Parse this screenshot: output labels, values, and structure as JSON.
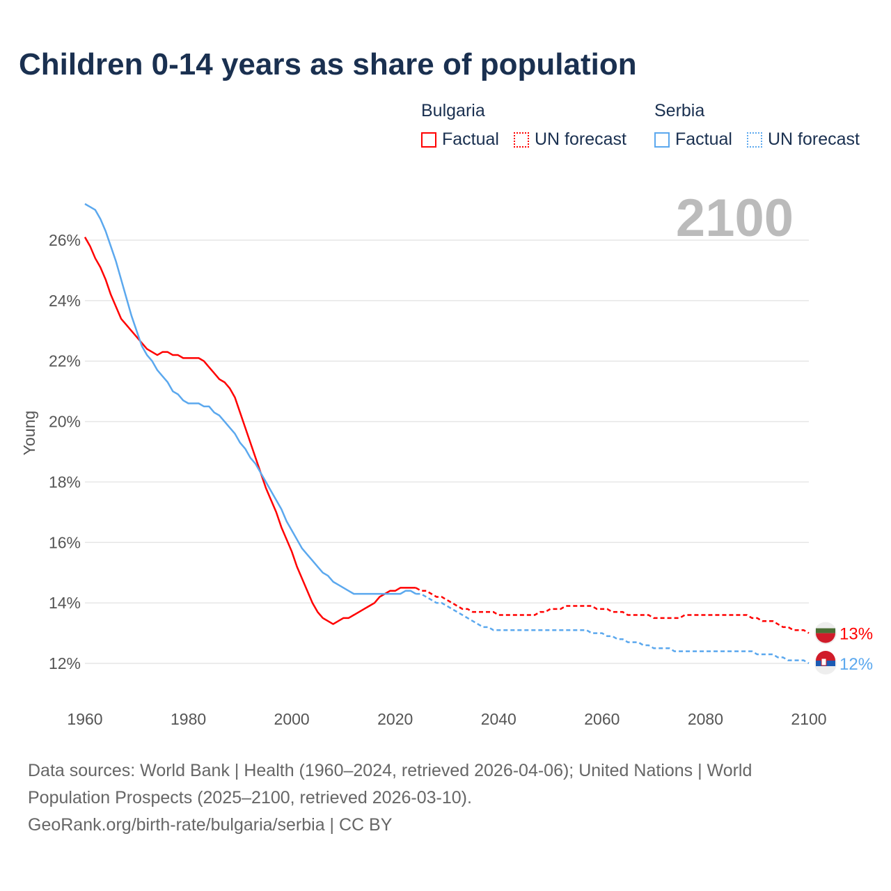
{
  "title": "Children 0-14 years as share of population",
  "legend": {
    "groups": [
      {
        "name": "Bulgaria",
        "color": "#ff0000",
        "factual": "Factual",
        "forecast": "UN forecast"
      },
      {
        "name": "Serbia",
        "color": "#5ba8ee",
        "factual": "Factual",
        "forecast": "UN forecast"
      }
    ]
  },
  "current_year": "2100",
  "footer": {
    "line1": "Data sources: World Bank | Health (1960–2024, retrieved 2026-04-06); United Nations | World Population Prospects (2025–2100, retrieved 2026-03-10).",
    "line2": "GeoRank.org/birth-rate/bulgaria/serbia | CC BY"
  },
  "chart_data": {
    "type": "line",
    "title": "Children 0-14 years as share of population",
    "xlabel": "",
    "ylabel": "Young",
    "xlim": [
      1960,
      2100
    ],
    "ylim": [
      11,
      27.2
    ],
    "xticks": [
      "1960",
      "1980",
      "2000",
      "2020",
      "2040",
      "2060",
      "2080",
      "2100"
    ],
    "yticks": [
      "12%",
      "14%",
      "16%",
      "18%",
      "20%",
      "22%",
      "24%",
      "26%"
    ],
    "grid": true,
    "series": [
      {
        "name": "Bulgaria",
        "color": "#ff0000",
        "end_label": "13%",
        "factual_start": 1960,
        "factual": [
          26.1,
          25.8,
          25.4,
          25.1,
          24.7,
          24.2,
          23.8,
          23.4,
          23.2,
          23.0,
          22.8,
          22.6,
          22.4,
          22.3,
          22.2,
          22.3,
          22.3,
          22.2,
          22.2,
          22.1,
          22.1,
          22.1,
          22.1,
          22.0,
          21.8,
          21.6,
          21.4,
          21.3,
          21.1,
          20.8,
          20.3,
          19.8,
          19.3,
          18.8,
          18.3,
          17.8,
          17.4,
          17.0,
          16.5,
          16.1,
          15.7,
          15.2,
          14.8,
          14.4,
          14.0,
          13.7,
          13.5,
          13.4,
          13.3,
          13.4,
          13.5,
          13.5,
          13.6,
          13.7,
          13.8,
          13.9,
          14.0,
          14.2,
          14.3,
          14.4,
          14.4,
          14.5,
          14.5,
          14.5,
          14.5
        ],
        "forecast_start": 2024,
        "forecast": [
          14.5,
          14.4,
          14.4,
          14.3,
          14.2,
          14.2,
          14.1,
          14.0,
          13.9,
          13.8,
          13.8,
          13.7,
          13.7,
          13.7,
          13.7,
          13.7,
          13.6,
          13.6,
          13.6,
          13.6,
          13.6,
          13.6,
          13.6,
          13.6,
          13.7,
          13.7,
          13.8,
          13.8,
          13.8,
          13.9,
          13.9,
          13.9,
          13.9,
          13.9,
          13.9,
          13.8,
          13.8,
          13.8,
          13.7,
          13.7,
          13.7,
          13.6,
          13.6,
          13.6,
          13.6,
          13.6,
          13.5,
          13.5,
          13.5,
          13.5,
          13.5,
          13.5,
          13.6,
          13.6,
          13.6,
          13.6,
          13.6,
          13.6,
          13.6,
          13.6,
          13.6,
          13.6,
          13.6,
          13.6,
          13.6,
          13.5,
          13.5,
          13.4,
          13.4,
          13.4,
          13.3,
          13.2,
          13.2,
          13.1,
          13.1,
          13.1,
          13.0
        ]
      },
      {
        "name": "Serbia",
        "color": "#5ba8ee",
        "end_label": "12%",
        "factual_start": 1960,
        "factual": [
          27.2,
          27.1,
          27.0,
          26.7,
          26.3,
          25.8,
          25.3,
          24.7,
          24.1,
          23.5,
          23.0,
          22.5,
          22.2,
          22.0,
          21.7,
          21.5,
          21.3,
          21.0,
          20.9,
          20.7,
          20.6,
          20.6,
          20.6,
          20.5,
          20.5,
          20.3,
          20.2,
          20.0,
          19.8,
          19.6,
          19.3,
          19.1,
          18.8,
          18.6,
          18.3,
          18.0,
          17.7,
          17.4,
          17.1,
          16.7,
          16.4,
          16.1,
          15.8,
          15.6,
          15.4,
          15.2,
          15.0,
          14.9,
          14.7,
          14.6,
          14.5,
          14.4,
          14.3,
          14.3,
          14.3,
          14.3,
          14.3,
          14.3,
          14.3,
          14.3,
          14.3,
          14.3,
          14.4,
          14.4,
          14.3
        ],
        "forecast_start": 2024,
        "forecast": [
          14.3,
          14.3,
          14.2,
          14.1,
          14.0,
          14.0,
          13.9,
          13.8,
          13.7,
          13.6,
          13.5,
          13.4,
          13.3,
          13.2,
          13.2,
          13.1,
          13.1,
          13.1,
          13.1,
          13.1,
          13.1,
          13.1,
          13.1,
          13.1,
          13.1,
          13.1,
          13.1,
          13.1,
          13.1,
          13.1,
          13.1,
          13.1,
          13.1,
          13.1,
          13.0,
          13.0,
          13.0,
          12.9,
          12.9,
          12.8,
          12.8,
          12.7,
          12.7,
          12.7,
          12.6,
          12.6,
          12.5,
          12.5,
          12.5,
          12.5,
          12.4,
          12.4,
          12.4,
          12.4,
          12.4,
          12.4,
          12.4,
          12.4,
          12.4,
          12.4,
          12.4,
          12.4,
          12.4,
          12.4,
          12.4,
          12.4,
          12.3,
          12.3,
          12.3,
          12.3,
          12.2,
          12.2,
          12.1,
          12.1,
          12.1,
          12.1,
          12.0
        ]
      }
    ]
  }
}
